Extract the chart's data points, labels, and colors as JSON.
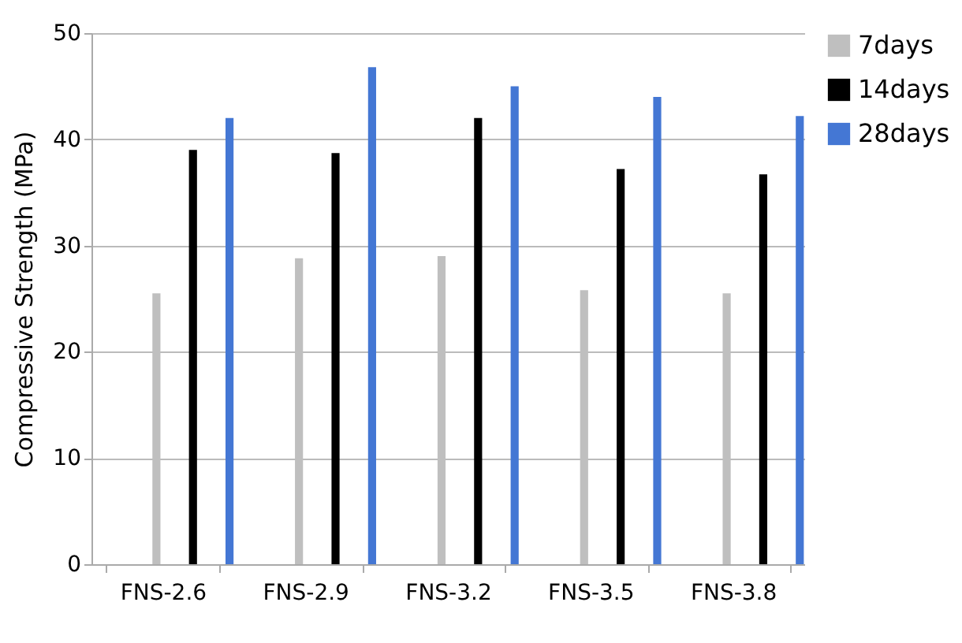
{
  "chart_data": {
    "type": "bar",
    "ylabel": "Compressive Strength (MPa)",
    "categories": [
      "FNS-2.6",
      "FNS-2.9",
      "FNS-3.2",
      "FNS-3.5",
      "FNS-3.8"
    ],
    "series": [
      {
        "name": "7days",
        "color": "#bfbfbf",
        "values": [
          25.5,
          28.8,
          29,
          25.8,
          25.5
        ]
      },
      {
        "name": "14days",
        "color": "#000000",
        "values": [
          39,
          38.7,
          42,
          37.2,
          36.7
        ]
      },
      {
        "name": "28days",
        "color": "#4477d4",
        "values": [
          42,
          46.8,
          45,
          44,
          42.2
        ]
      }
    ],
    "ylim": [
      0,
      50
    ],
    "yticks": [
      0,
      10,
      20,
      30,
      40,
      50
    ],
    "grid": "y",
    "legend": "right"
  }
}
